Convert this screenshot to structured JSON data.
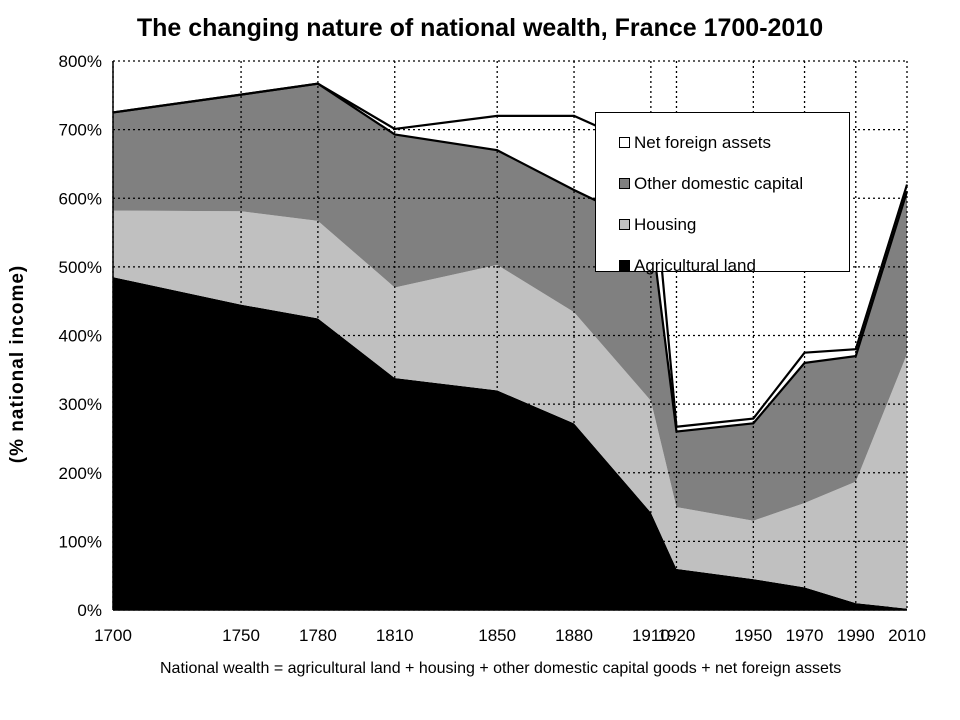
{
  "chart_data": {
    "type": "area",
    "title": "The changing nature of national wealth, France 1700-2010",
    "ylabel": "(% national income)",
    "xlabel": "National wealth = agricultural land + housing + other domestic capital goods + net foreign assets",
    "categories": [
      "1700",
      "1750",
      "1780",
      "1810",
      "1850",
      "1880",
      "1910",
      "1920",
      "1950",
      "1970",
      "1990",
      "2010"
    ],
    "ylim": [
      0,
      800
    ],
    "y_ticks": [
      "0%",
      "100%",
      "200%",
      "300%",
      "400%",
      "500%",
      "600%",
      "700%",
      "800%"
    ],
    "grid": true,
    "stacked": true,
    "legend_position": "top-right",
    "series": [
      {
        "name": "Agricultural land",
        "color": "#000000",
        "values": [
          485,
          445,
          425,
          338,
          320,
          272,
          142,
          60,
          45,
          33,
          10,
          2
        ]
      },
      {
        "name": "Housing",
        "color": "#c0c0c0",
        "values": [
          97,
          136,
          142,
          132,
          183,
          162,
          163,
          90,
          85,
          123,
          177,
          371
        ]
      },
      {
        "name": "Other domestic capital",
        "color": "#808080",
        "values": [
          143,
          170,
          200,
          223,
          167,
          178,
          253,
          110,
          142,
          204,
          183,
          237
        ]
      },
      {
        "name": "Net foreign assets",
        "color": "#ffffff",
        "values": [
          0,
          0,
          0,
          8,
          50,
          108,
          112,
          7,
          7,
          15,
          10,
          10
        ]
      }
    ]
  },
  "legend_order": [
    3,
    2,
    1,
    0
  ]
}
